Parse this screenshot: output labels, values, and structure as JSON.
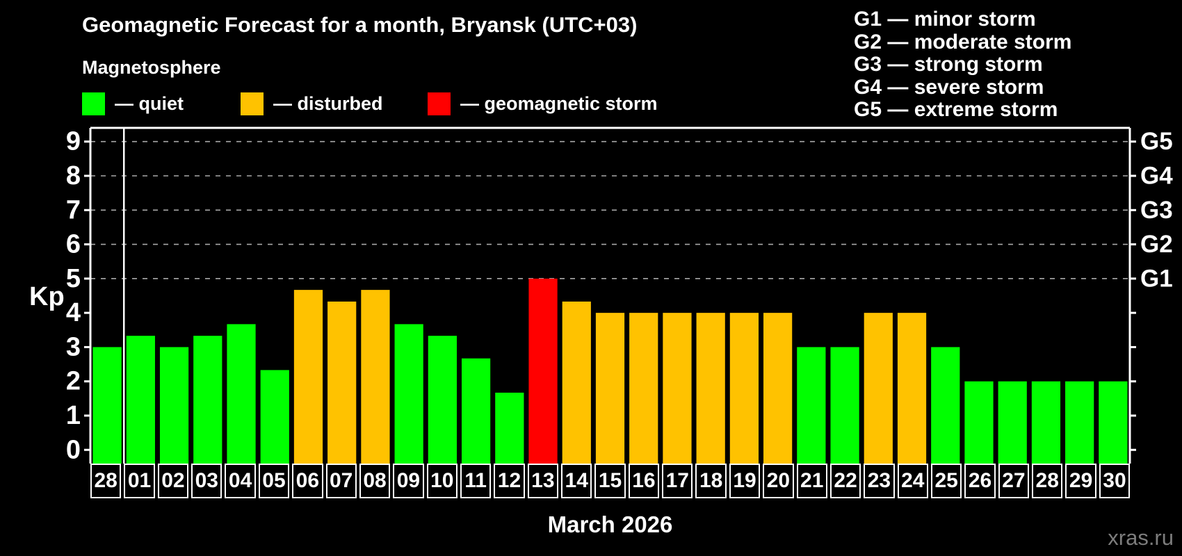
{
  "title": "Geomagnetic Forecast for a month, Bryansk (UTC+03)",
  "subtitle": "Magnetosphere",
  "legend": {
    "items": [
      {
        "key": "quiet",
        "label": "— quiet",
        "color": "#00ff00"
      },
      {
        "key": "disturbed",
        "label": "— disturbed",
        "color": "#ffc200"
      },
      {
        "key": "storm",
        "label": "— geomagnetic storm",
        "color": "#ff0000"
      }
    ]
  },
  "g_scale_legend": [
    "G1 — minor storm",
    "G2 — moderate storm",
    "G3 — strong storm",
    "G4 — severe storm",
    "G5 — extreme storm"
  ],
  "watermark": "xras.ru",
  "chart_data": {
    "type": "bar",
    "title": "Geomagnetic Forecast for a month, Bryansk (UTC+03)",
    "xlabel": "March 2026",
    "ylabel": "Kp",
    "ylim": [
      -0.4,
      9.4
    ],
    "yticks": [
      0,
      1,
      2,
      3,
      4,
      5,
      6,
      7,
      8,
      9
    ],
    "gridlines_at": [
      5,
      6,
      7,
      8,
      9
    ],
    "grid": "dashed horizontal at G-storm levels only",
    "legend_position": "top",
    "right_axis_labels": [
      {
        "label": "G5",
        "kp": 9
      },
      {
        "label": "G4",
        "kp": 8
      },
      {
        "label": "G3",
        "kp": 7
      },
      {
        "label": "G2",
        "kp": 6
      },
      {
        "label": "G1",
        "kp": 5
      }
    ],
    "categories": [
      "28",
      "01",
      "02",
      "03",
      "04",
      "05",
      "06",
      "07",
      "08",
      "09",
      "10",
      "11",
      "12",
      "13",
      "14",
      "15",
      "16",
      "17",
      "18",
      "19",
      "20",
      "21",
      "22",
      "23",
      "24",
      "25",
      "26",
      "27",
      "28",
      "29",
      "30"
    ],
    "values": [
      3.0,
      3.33,
      3.0,
      3.33,
      3.67,
      2.33,
      4.67,
      4.33,
      4.67,
      3.67,
      3.33,
      2.67,
      1.67,
      5.0,
      4.33,
      4.0,
      4.0,
      4.0,
      4.0,
      4.0,
      4.0,
      3.0,
      3.0,
      4.0,
      4.0,
      3.0,
      2.0,
      2.0,
      2.0,
      2.0,
      2.0
    ],
    "statuses": [
      "quiet",
      "quiet",
      "quiet",
      "quiet",
      "quiet",
      "quiet",
      "disturbed",
      "disturbed",
      "disturbed",
      "quiet",
      "quiet",
      "quiet",
      "quiet",
      "storm",
      "disturbed",
      "disturbed",
      "disturbed",
      "disturbed",
      "disturbed",
      "disturbed",
      "disturbed",
      "quiet",
      "quiet",
      "disturbed",
      "disturbed",
      "quiet",
      "quiet",
      "quiet",
      "quiet",
      "quiet",
      "quiet"
    ],
    "separator_after_category_index": 0,
    "colors": {
      "quiet": "#00ff00",
      "disturbed": "#ffc200",
      "storm": "#ff0000",
      "axis": "#ffffff",
      "grid": "#a9a9a9",
      "background": "#000000"
    }
  }
}
